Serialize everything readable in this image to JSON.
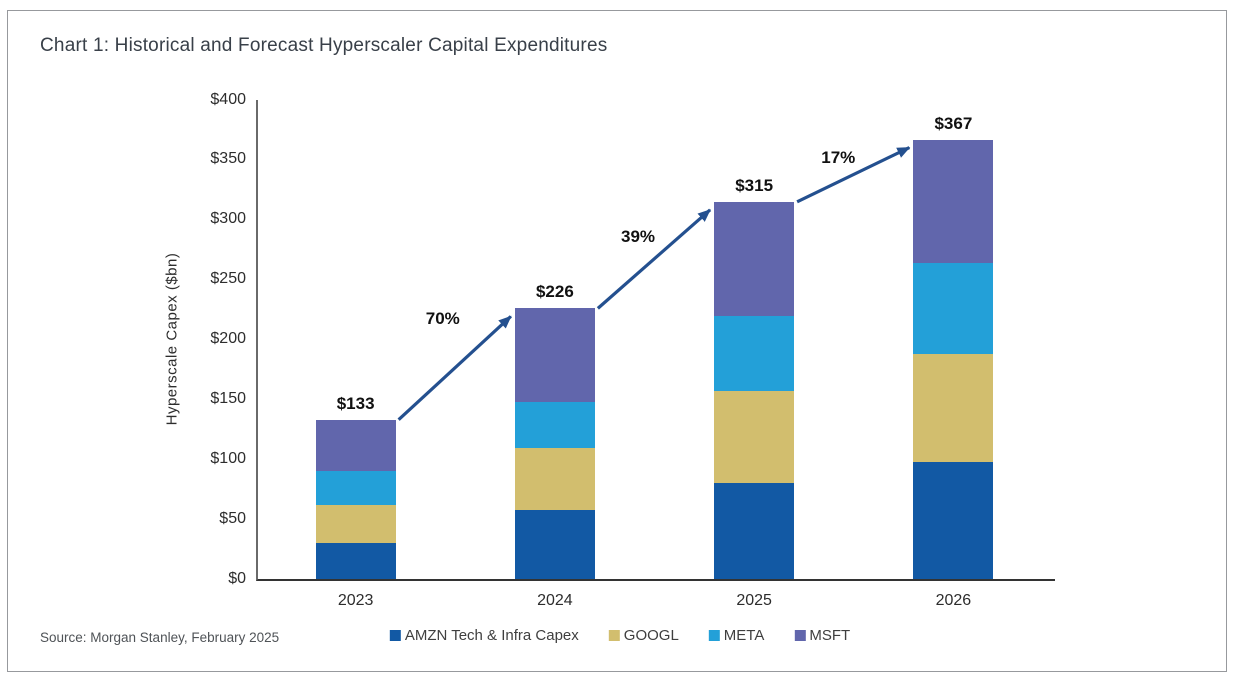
{
  "page": {
    "title": "Chart 1: Historical and Forecast Hyperscaler Capital Expenditures",
    "source": "Source: Morgan Stanley, February 2025"
  },
  "chart_data": {
    "type": "bar",
    "stacked": true,
    "title": "Chart 1: Historical and Forecast Hyperscaler Capital Expenditures",
    "categories": [
      "2023",
      "2024",
      "2025",
      "2026"
    ],
    "series": [
      {
        "name": "AMZN Tech & Infra Capex",
        "color": "#1259A4",
        "values": [
          30,
          58,
          80,
          98
        ]
      },
      {
        "name": "GOOGL",
        "color": "#D2BE6E",
        "values": [
          32,
          51,
          77,
          90
        ]
      },
      {
        "name": "META",
        "color": "#23A0D8",
        "values": [
          28,
          39,
          63,
          76
        ]
      },
      {
        "name": "MSFT",
        "color": "#6166AC",
        "values": [
          43,
          78,
          95,
          103
        ]
      }
    ],
    "totals": [
      133,
      226,
      315,
      367
    ],
    "total_labels": [
      "$133",
      "$226",
      "$315",
      "$367"
    ],
    "growth_labels": [
      "70%",
      "39%",
      "17%"
    ],
    "ylabel": "Hyperscale Capex ($bn)",
    "xlabel": "",
    "ylim": [
      0,
      400
    ],
    "ytick_step": 50,
    "ytick_labels": [
      "$0",
      "$50",
      "$100",
      "$150",
      "$200",
      "$250",
      "$300",
      "$350",
      "$400"
    ],
    "grid": false,
    "legend_position": "bottom",
    "arrow_color": "#24508F"
  }
}
